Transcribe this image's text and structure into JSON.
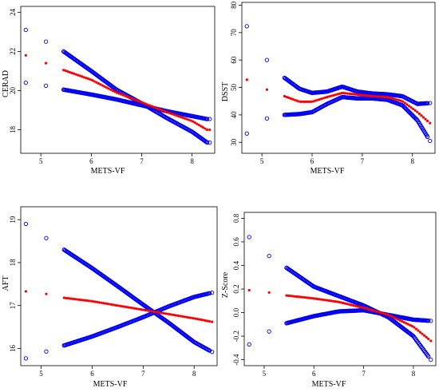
{
  "colors": {
    "band": "#0000ee",
    "fit": "#ff0000",
    "axis": "#000000"
  },
  "chart_data": [
    {
      "type": "scatter",
      "title": "",
      "xlabel": "METS-VF",
      "ylabel": "CERAD",
      "xlim": [
        4.6,
        8.45
      ],
      "ylim": [
        16.8,
        24.3
      ],
      "xticks": [
        5,
        6,
        7,
        8
      ],
      "yticks": [
        18,
        20,
        22,
        24
      ],
      "grid": false,
      "x_outliers": [
        4.7,
        5.1,
        8.35
      ],
      "fit": {
        "x": [
          4.7,
          5.1,
          5.45,
          6.0,
          6.5,
          7.0,
          7.5,
          8.0,
          8.3
        ],
        "y": [
          21.8,
          21.4,
          21.05,
          20.55,
          19.9,
          19.4,
          18.9,
          18.45,
          18.0
        ]
      },
      "upper": {
        "x": [
          4.7,
          5.1,
          5.45,
          6.0,
          6.5,
          7.0,
          7.5,
          8.0,
          8.3
        ],
        "y": [
          23.1,
          22.5,
          22.0,
          21.0,
          20.05,
          19.35,
          18.6,
          17.9,
          17.35
        ]
      },
      "lower": {
        "x": [
          4.7,
          5.1,
          5.45,
          6.0,
          6.5,
          7.0,
          7.5,
          8.0,
          8.3
        ],
        "y": [
          20.4,
          20.25,
          20.05,
          19.8,
          19.55,
          19.25,
          18.95,
          18.7,
          18.55
        ]
      }
    },
    {
      "type": "scatter",
      "title": "",
      "xlabel": "METS-VF",
      "ylabel": "DSST",
      "xlim": [
        4.6,
        8.45
      ],
      "ylim": [
        26,
        81
      ],
      "xticks": [
        5,
        6,
        7,
        8
      ],
      "yticks": [
        30,
        40,
        50,
        60,
        70,
        80
      ],
      "grid": false,
      "x_outliers": [
        4.7,
        5.1,
        8.35
      ],
      "fit": {
        "x": [
          4.7,
          5.1,
          5.45,
          5.75,
          6.0,
          6.3,
          6.6,
          6.9,
          7.2,
          7.5,
          7.8,
          8.1,
          8.35
        ],
        "y": [
          52.8,
          49.2,
          46.8,
          44.8,
          44.8,
          46.5,
          48.0,
          47.4,
          46.8,
          46.5,
          45.0,
          41.0,
          37.0
        ]
      },
      "upper": {
        "x": [
          4.7,
          5.1,
          5.45,
          5.75,
          6.0,
          6.3,
          6.6,
          6.9,
          7.2,
          7.5,
          7.8,
          8.1,
          8.35
        ],
        "y": [
          72.3,
          60.0,
          53.5,
          49.5,
          48.0,
          48.5,
          50.3,
          48.5,
          47.8,
          47.5,
          46.8,
          44.0,
          44.3
        ]
      },
      "lower": {
        "x": [
          4.7,
          5.1,
          5.45,
          5.75,
          6.0,
          6.3,
          6.6,
          6.9,
          7.2,
          7.5,
          7.8,
          8.1,
          8.35
        ],
        "y": [
          33.2,
          38.7,
          40.0,
          40.3,
          41.0,
          44.0,
          46.5,
          46.0,
          46.0,
          45.5,
          43.5,
          38.0,
          30.5
        ]
      }
    },
    {
      "type": "scatter",
      "title": "",
      "xlabel": "METS-VF",
      "ylabel": "AFT",
      "xlim": [
        4.6,
        8.45
      ],
      "ylim": [
        15.6,
        19.3
      ],
      "xticks": [
        5,
        6,
        7,
        8
      ],
      "yticks": [
        16,
        17,
        18,
        19
      ],
      "grid": false,
      "x_outliers": [
        4.7,
        5.1,
        8.35
      ],
      "fit": {
        "x": [
          4.7,
          5.1,
          5.45,
          6.0,
          6.5,
          7.0,
          7.5,
          8.0,
          8.35
        ],
        "y": [
          17.33,
          17.27,
          17.18,
          17.1,
          17.0,
          16.9,
          16.8,
          16.7,
          16.62
        ]
      },
      "upper": {
        "x": [
          4.7,
          5.1,
          5.45,
          6.0,
          6.5,
          7.0,
          7.5,
          8.0,
          8.35
        ],
        "y": [
          18.9,
          18.57,
          18.3,
          17.87,
          17.45,
          17.02,
          16.6,
          16.15,
          15.92
        ]
      },
      "lower": {
        "x": [
          4.7,
          5.1,
          5.45,
          6.0,
          6.5,
          7.0,
          7.5,
          8.0,
          8.35
        ],
        "y": [
          15.77,
          15.93,
          16.07,
          16.28,
          16.5,
          16.73,
          16.98,
          17.2,
          17.3
        ]
      }
    },
    {
      "type": "scatter",
      "title": "",
      "xlabel": "METS-VF",
      "ylabel": "Z-Score",
      "xlim": [
        4.6,
        8.45
      ],
      "ylim": [
        -0.45,
        0.85
      ],
      "xticks": [
        5,
        6,
        7,
        8
      ],
      "yticks": [
        -0.4,
        -0.2,
        0.0,
        0.2,
        0.4,
        0.6,
        0.8
      ],
      "yticklabels": [
        "-0.4",
        "-0.2",
        "0.0",
        "0.2",
        "0.4",
        "0.6",
        "0.8"
      ],
      "grid": false,
      "x_outliers": [
        4.7,
        5.1,
        8.35
      ],
      "fit": {
        "x": [
          4.7,
          5.1,
          5.45,
          6.0,
          6.5,
          7.0,
          7.5,
          8.0,
          8.35
        ],
        "y": [
          0.19,
          0.17,
          0.145,
          0.12,
          0.09,
          0.04,
          -0.02,
          -0.12,
          -0.24
        ]
      },
      "upper": {
        "x": [
          4.7,
          5.1,
          5.45,
          6.0,
          6.5,
          7.0,
          7.5,
          8.0,
          8.35
        ],
        "y": [
          0.64,
          0.48,
          0.38,
          0.22,
          0.14,
          0.06,
          -0.04,
          -0.2,
          -0.4
        ]
      },
      "lower": {
        "x": [
          4.7,
          5.1,
          5.45,
          6.0,
          6.5,
          7.0,
          7.5,
          8.0,
          8.35
        ],
        "y": [
          -0.27,
          -0.16,
          -0.09,
          -0.03,
          0.01,
          0.02,
          -0.02,
          -0.06,
          -0.07
        ]
      }
    }
  ]
}
